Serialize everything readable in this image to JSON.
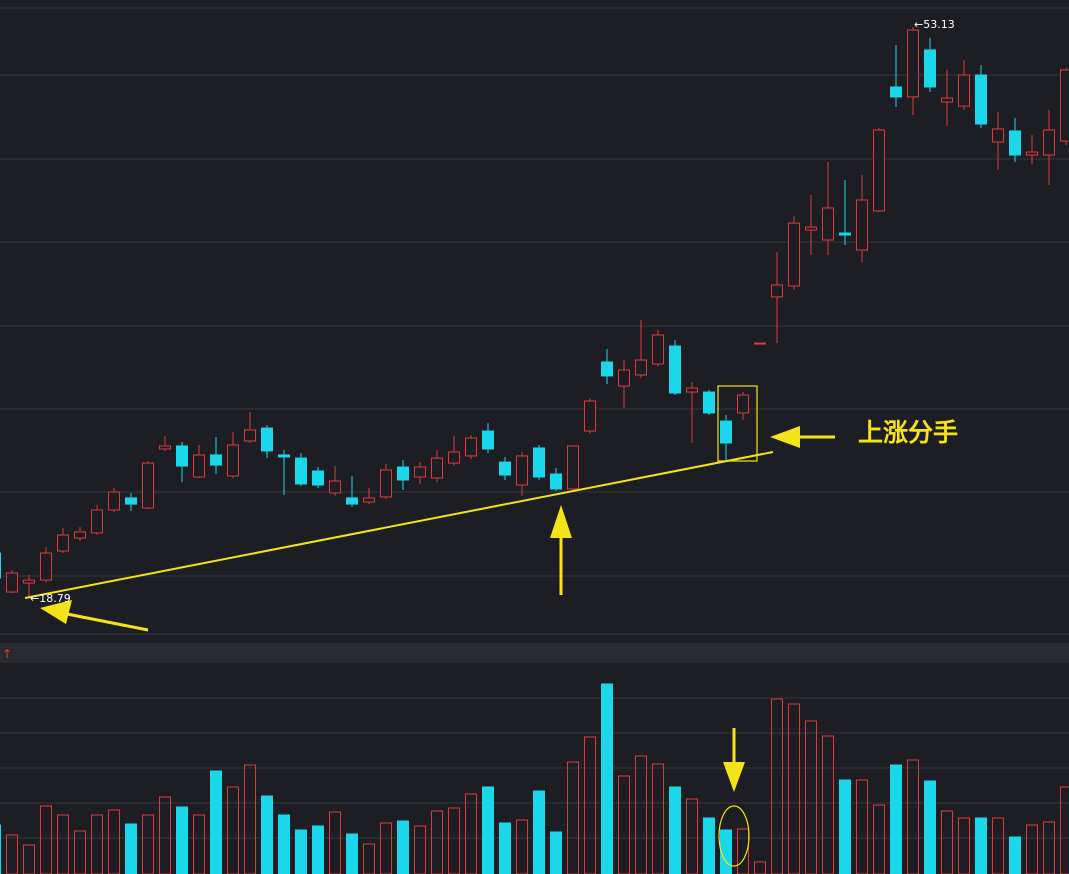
{
  "chart_data": {
    "type": "candlestick",
    "open": [
      21.44,
      19.09,
      19.63,
      19.81,
      21.56,
      22.34,
      22.65,
      24.03,
      24.76,
      24.15,
      27.71,
      27.89,
      26.02,
      27.35,
      26.08,
      28.19,
      28.97,
      27.35,
      27.16,
      26.38,
      25.06,
      24.76,
      24.51,
      24.82,
      26.62,
      26.02,
      25.96,
      26.86,
      27.29,
      28.79,
      26.92,
      25.54,
      27.77,
      26.2,
      25.3,
      28.79,
      32.95,
      31.5,
      32.17,
      32.83,
      33.91,
      31.14,
      31.14,
      29.39,
      29.88,
      34.09,
      36.87,
      37.53,
      40.9,
      40.3,
      40.72,
      39.7,
      42.05,
      49.52,
      48.92,
      51.75,
      48.61,
      48.37,
      50.24,
      46.2,
      46.87,
      45.42,
      45.42,
      46.26
    ],
    "high": [
      21.92,
      20.42,
      20.12,
      21.8,
      22.95,
      23.01,
      24.33,
      25.36,
      25.06,
      26.98,
      28.49,
      28.13,
      27.95,
      28.43,
      28.73,
      29.94,
      29.15,
      27.65,
      27.47,
      26.62,
      26.68,
      26.08,
      25.36,
      26.8,
      27.04,
      26.92,
      27.65,
      28.49,
      28.55,
      29.27,
      27.23,
      27.53,
      27.95,
      26.56,
      27.89,
      30.78,
      33.73,
      33.07,
      35.48,
      34.88,
      34.27,
      31.74,
      31.26,
      29.76,
      31.14,
      34.09,
      39.58,
      41.75,
      43.01,
      45.0,
      43.91,
      44.22,
      47.05,
      52.05,
      53.13,
      52.47,
      50.54,
      51.14,
      50.84,
      48.01,
      47.65,
      46.63,
      48.13,
      50.66
    ],
    "low": [
      19.81,
      19.03,
      18.79,
      19.69,
      21.44,
      22.16,
      22.53,
      23.91,
      23.97,
      24.09,
      27.59,
      25.72,
      25.96,
      26.2,
      25.96,
      28.07,
      27.16,
      24.94,
      25.48,
      25.36,
      24.88,
      24.21,
      24.39,
      24.69,
      25.24,
      25.6,
      25.72,
      26.68,
      27.1,
      27.47,
      25.84,
      24.88,
      25.84,
      25.18,
      25.24,
      28.61,
      31.62,
      30.18,
      31.99,
      32.71,
      30.96,
      28.07,
      29.76,
      27.04,
      29.45,
      34.09,
      34.09,
      37.29,
      39.4,
      39.4,
      40.0,
      38.97,
      41.99,
      48.31,
      47.83,
      49.22,
      47.17,
      48.13,
      47.05,
      44.52,
      45.0,
      44.88,
      43.61,
      46.02
    ],
    "close": [
      19.93,
      20.24,
      19.81,
      21.44,
      22.53,
      22.71,
      24.03,
      25.12,
      24.39,
      26.86,
      27.89,
      26.68,
      27.35,
      26.74,
      27.95,
      28.85,
      27.59,
      27.23,
      25.6,
      25.54,
      25.78,
      24.39,
      24.76,
      26.44,
      25.84,
      26.62,
      27.16,
      27.53,
      28.37,
      27.71,
      26.14,
      27.29,
      26.02,
      25.3,
      27.89,
      30.6,
      32.11,
      32.47,
      33.07,
      34.58,
      31.08,
      31.38,
      29.88,
      28.07,
      30.96,
      34.09,
      37.59,
      41.32,
      41.08,
      42.23,
      40.6,
      42.71,
      46.93,
      48.92,
      52.95,
      49.52,
      48.85,
      50.24,
      47.29,
      46.99,
      45.42,
      45.6,
      46.93,
      50.54
    ],
    "volume": [
      49,
      39,
      29,
      68,
      59,
      43,
      59,
      64,
      50,
      59,
      77,
      67,
      59,
      103,
      87,
      109,
      78,
      59,
      44,
      48,
      62,
      40,
      30,
      51,
      53,
      48,
      63,
      66,
      80,
      87,
      51,
      54,
      83,
      42,
      112,
      137,
      190,
      98,
      118,
      110,
      87,
      75,
      56,
      44,
      45,
      12,
      175,
      170,
      153,
      138,
      94,
      94,
      69,
      109,
      114,
      93,
      63,
      56,
      56,
      56,
      37,
      49,
      52,
      87
    ],
    "ylim": [
      16.2,
      54.76
    ],
    "volume_lim": [
      0,
      204
    ],
    "up_color": "#e0393b",
    "down_color": "#1ad8ea",
    "high_label": "←53.13",
    "low_label": "←18.79",
    "pattern_label": "上涨分手",
    "panel_marker": "↑"
  }
}
